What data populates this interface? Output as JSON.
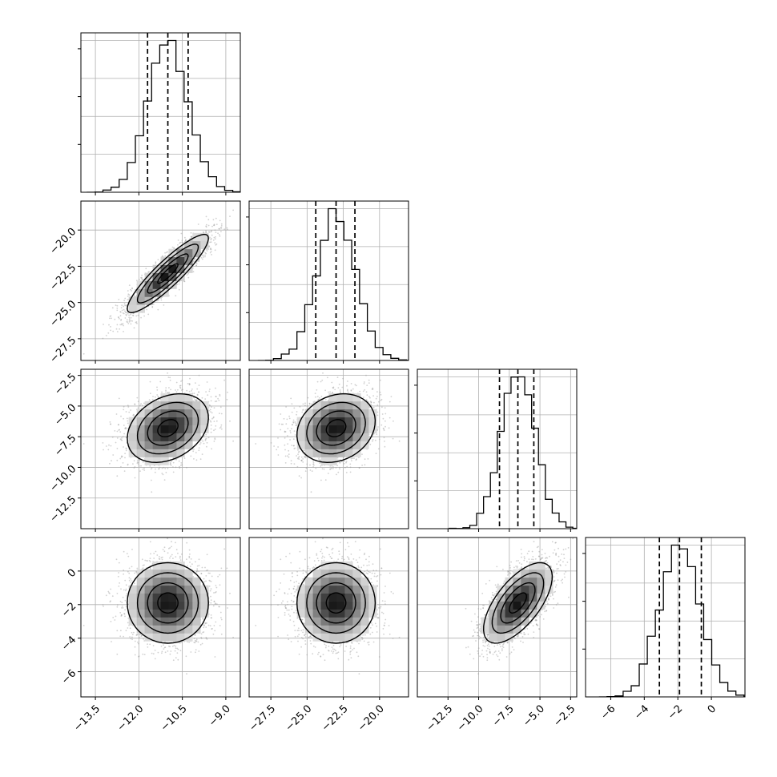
{
  "chart_data": {
    "type": "corner",
    "parameters": [
      {
        "range": [
          -14.0,
          -8.5
        ],
        "ticks": [
          -13.5,
          -12.0,
          -10.5,
          -9.0
        ],
        "tick_labels": [
          "−13.5",
          "−12.0",
          "−10.5",
          "−9.0"
        ],
        "quantiles": [
          -11.7,
          -11.0,
          -10.3
        ],
        "mean": -11.0,
        "sd": 0.7
      },
      {
        "range": [
          -29.0,
          -18.0
        ],
        "ticks": [
          -27.5,
          -25.0,
          -22.5,
          -20.0
        ],
        "tick_labels": [
          "−27.5",
          "−25.0",
          "−22.5",
          "−20.0"
        ],
        "quantiles": [
          -24.4,
          -23.0,
          -21.7
        ],
        "mean": -23.0,
        "sd": 1.35
      },
      {
        "range": [
          -15.0,
          -2.0
        ],
        "ticks": [
          -12.5,
          -10.0,
          -7.5,
          -5.0,
          -2.5
        ],
        "tick_labels": [
          "−12.5",
          "−10.0",
          "−7.5",
          "−5.0",
          "−2.5"
        ],
        "quantiles": [
          -8.3,
          -6.8,
          -5.5
        ],
        "mean": -6.8,
        "sd": 1.4
      },
      {
        "range": [
          -7.5,
          2.0
        ],
        "ticks": [
          -6,
          -4,
          -2,
          0
        ],
        "tick_labels": [
          "−6",
          "−4",
          "−2",
          "0"
        ],
        "quantiles": [
          -3.1,
          -1.9,
          -0.6
        ],
        "mean": -1.9,
        "sd": 1.2
      }
    ],
    "correlations": [
      [
        1.0,
        0.9,
        0.3,
        0.0
      ],
      [
        0.9,
        1.0,
        0.2,
        0.0
      ],
      [
        0.3,
        0.2,
        1.0,
        0.65
      ],
      [
        0.0,
        0.0,
        0.65,
        1.0
      ]
    ],
    "histogram_bins": 20,
    "contour_levels": [
      0.5,
      1.0,
      1.5,
      2.0
    ],
    "grid": true,
    "quantile_line_style": "dashed",
    "colors": {
      "line": "#000000",
      "grid": "#b0b0b0",
      "points": "#9a9a9a"
    }
  }
}
